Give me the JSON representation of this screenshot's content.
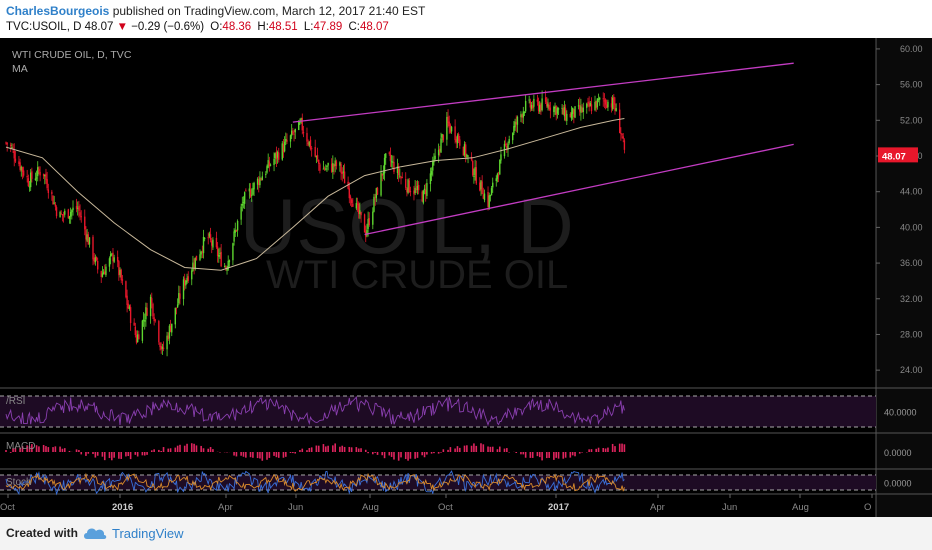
{
  "header": {
    "author": "CharlesBourgeois",
    "published_text": "published on TradingView.com, March 12, 2017 21:40 EST",
    "symbol": "TVC:USOIL, D",
    "last": "48.07",
    "arrow": "▼",
    "change": "−0.29 (−0.6%)",
    "open_label": "O:",
    "open": "48.36",
    "high_label": "H:",
    "high": "48.51",
    "low_label": "L:",
    "low": "47.89",
    "close_label": "C:",
    "close": "48.07"
  },
  "footer": {
    "created_with": "Created with",
    "brand": "TradingView",
    "logo_icon": "cloud-logo-icon"
  },
  "colors": {
    "background": "#000000",
    "up": "#5ed62f",
    "down": "#e8172b",
    "ma": "#c8b89a",
    "trendline": "#c23cc2",
    "rsi": "#8a3fb0",
    "macd": "#e0245e",
    "stoch_k": "#3a6fd8",
    "stoch_d": "#d98a2b",
    "price_label_bg": "#e8172b"
  },
  "chart_data": {
    "type": "candlestick",
    "title": "WTI CRUDE OIL, D, TVC",
    "indicator_label": "MA",
    "watermark_symbol": "USOIL, D",
    "watermark_name": "WTI CRUDE OIL",
    "last_price_label": "48.07",
    "ylim": [
      22,
      61
    ],
    "y_ticks": [
      "60.00",
      "56.00",
      "52.00",
      "48.00",
      "44.00",
      "40.00",
      "36.00",
      "32.00",
      "28.00",
      "24.00"
    ],
    "x_ticks": [
      "Oct",
      "2016",
      "Apr",
      "Jun",
      "Aug",
      "Oct",
      "2017",
      "Apr",
      "Jun",
      "Aug",
      "O"
    ],
    "price_path": [
      [
        "2015-10-01",
        49.5
      ],
      [
        "2015-10-05",
        49.0
      ],
      [
        "2015-10-20",
        45.2
      ],
      [
        "2015-11-01",
        46.5
      ],
      [
        "2015-11-15",
        41.2
      ],
      [
        "2015-12-01",
        42.2
      ],
      [
        "2015-12-20",
        34.5
      ],
      [
        "2016-01-01",
        37.0
      ],
      [
        "2016-01-20",
        27.5
      ],
      [
        "2016-02-01",
        32.0
      ],
      [
        "2016-02-11",
        26.0
      ],
      [
        "2016-03-01",
        34.0
      ],
      [
        "2016-03-20",
        39.0
      ],
      [
        "2016-04-05",
        35.5
      ],
      [
        "2016-04-20",
        43.0
      ],
      [
        "2016-05-15",
        47.5
      ],
      [
        "2016-06-08",
        51.5
      ],
      [
        "2016-06-25",
        46.5
      ],
      [
        "2016-07-10",
        47.0
      ],
      [
        "2016-08-02",
        39.5
      ],
      [
        "2016-08-20",
        48.0
      ],
      [
        "2016-09-05",
        44.8
      ],
      [
        "2016-09-20",
        43.5
      ],
      [
        "2016-10-10",
        51.6
      ],
      [
        "2016-10-20",
        50.0
      ],
      [
        "2016-11-14",
        42.8
      ],
      [
        "2016-11-30",
        49.5
      ],
      [
        "2016-12-15",
        53.5
      ],
      [
        "2017-01-05",
        53.8
      ],
      [
        "2017-01-20",
        52.5
      ],
      [
        "2017-02-05",
        53.2
      ],
      [
        "2017-02-20",
        54.3
      ],
      [
        "2017-03-01",
        53.8
      ],
      [
        "2017-03-08",
        50.2
      ],
      [
        "2017-03-10",
        48.07
      ]
    ],
    "moving_average": [
      [
        "2015-10-01",
        49.0
      ],
      [
        "2015-11-01",
        47.8
      ],
      [
        "2015-12-01",
        44.0
      ],
      [
        "2016-01-01",
        40.5
      ],
      [
        "2016-02-01",
        37.5
      ],
      [
        "2016-03-01",
        35.5
      ],
      [
        "2016-04-01",
        35.2
      ],
      [
        "2016-05-01",
        36.5
      ],
      [
        "2016-06-01",
        40.0
      ],
      [
        "2016-07-01",
        43.5
      ],
      [
        "2016-08-01",
        45.8
      ],
      [
        "2016-09-01",
        46.8
      ],
      [
        "2016-10-01",
        47.5
      ],
      [
        "2016-11-01",
        47.8
      ],
      [
        "2016-12-01",
        48.8
      ],
      [
        "2017-01-01",
        50.0
      ],
      [
        "2017-02-01",
        51.2
      ],
      [
        "2017-03-01",
        52.0
      ],
      [
        "2017-03-10",
        52.2
      ]
    ],
    "trendlines": [
      {
        "name": "upper",
        "points": [
          [
            "2016-06-01",
            51.8
          ],
          [
            "2017-08-01",
            58.4
          ]
        ]
      },
      {
        "name": "lower",
        "points": [
          [
            "2016-08-01",
            39.2
          ],
          [
            "2017-08-01",
            49.3
          ]
        ]
      }
    ],
    "x_range": [
      "2015-10-01",
      "2017-10-10"
    ],
    "panes": [
      {
        "label": "/RSI",
        "value_label": "40.0000"
      },
      {
        "label": "MACD",
        "value_label": "0.0000"
      },
      {
        "label": "Stoch",
        "value_label": "0.0000"
      }
    ]
  }
}
